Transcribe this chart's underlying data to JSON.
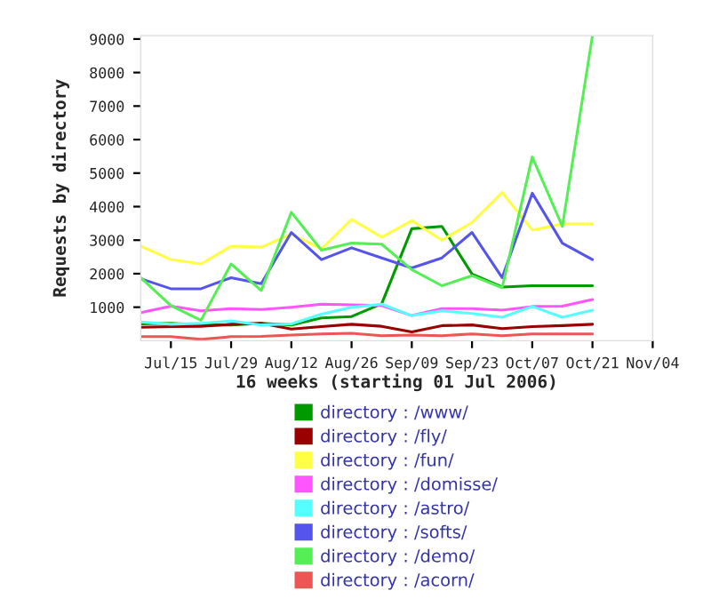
{
  "chart_data": {
    "type": "line",
    "xlabel": "16 weeks (starting 01 Jul 2006)",
    "ylabel": "Requests by directory",
    "x": [
      "2006-07-08",
      "2006-07-15",
      "2006-07-22",
      "2006-07-29",
      "2006-08-05",
      "2006-08-12",
      "2006-08-19",
      "2006-08-26",
      "2006-09-02",
      "2006-09-09",
      "2006-09-16",
      "2006-09-23",
      "2006-09-30",
      "2006-10-07",
      "2006-10-14",
      "2006-10-21"
    ],
    "series": [
      {
        "name": "directory : /www/",
        "color": "#009900",
        "values": [
          500,
          520,
          470,
          470,
          520,
          470,
          680,
          720,
          1100,
          3340,
          3410,
          1990,
          1600,
          1640,
          1640,
          1640
        ]
      },
      {
        "name": "directory : /fly/",
        "color": "#990000",
        "values": [
          400,
          420,
          430,
          490,
          520,
          350,
          420,
          490,
          430,
          260,
          450,
          470,
          360,
          420,
          450,
          490
        ]
      },
      {
        "name": "directory : /fun/",
        "color": "#ffff44",
        "values": [
          2820,
          2420,
          2290,
          2820,
          2790,
          3180,
          2740,
          3620,
          3090,
          3580,
          3000,
          3530,
          4420,
          3300,
          3480,
          3480
        ]
      },
      {
        "name": "directory : /domisse/",
        "color": "#ff55ff",
        "values": [
          840,
          1030,
          890,
          960,
          930,
          1000,
          1090,
          1070,
          1050,
          750,
          960,
          960,
          910,
          1020,
          1030,
          1230
        ]
      },
      {
        "name": "directory : /astro/",
        "color": "#55ffff",
        "values": [
          560,
          490,
          520,
          590,
          470,
          500,
          790,
          1000,
          1090,
          750,
          890,
          810,
          700,
          1020,
          700,
          910
        ]
      },
      {
        "name": "directory : /softs/",
        "color": "#5555ee",
        "values": [
          1850,
          1550,
          1550,
          1880,
          1700,
          3230,
          2420,
          2770,
          2470,
          2170,
          2470,
          3230,
          1880,
          4400,
          2910,
          2420
        ]
      },
      {
        "name": "directory : /demo/",
        "color": "#55ee55",
        "values": [
          1880,
          1050,
          610,
          2290,
          1500,
          3830,
          2700,
          2910,
          2880,
          2120,
          1640,
          1940,
          1580,
          5480,
          3410,
          9100
        ]
      },
      {
        "name": "directory : /acorn/",
        "color": "#ee5555",
        "values": [
          120,
          120,
          40,
          120,
          130,
          170,
          200,
          220,
          150,
          170,
          150,
          200,
          150,
          200,
          200,
          200
        ]
      }
    ],
    "xlim": [
      "2006-07-08",
      "2006-11-04"
    ],
    "xticks": [
      {
        "value": "2006-07-15",
        "label": "Jul/15"
      },
      {
        "value": "2006-07-29",
        "label": "Jul/29"
      },
      {
        "value": "2006-08-12",
        "label": "Aug/12"
      },
      {
        "value": "2006-08-26",
        "label": "Aug/26"
      },
      {
        "value": "2006-09-09",
        "label": "Sep/09"
      },
      {
        "value": "2006-09-23",
        "label": "Sep/23"
      },
      {
        "value": "2006-10-07",
        "label": "Oct/07"
      },
      {
        "value": "2006-10-21",
        "label": "Oct/21"
      },
      {
        "value": "2006-11-04",
        "label": "Nov/04"
      }
    ],
    "ylim": [
      0,
      9100
    ],
    "yticks": [
      1000,
      2000,
      3000,
      4000,
      5000,
      6000,
      7000,
      8000,
      9000
    ],
    "grid": false,
    "legend": "bottom",
    "marker": "none",
    "line_style": "solid"
  }
}
